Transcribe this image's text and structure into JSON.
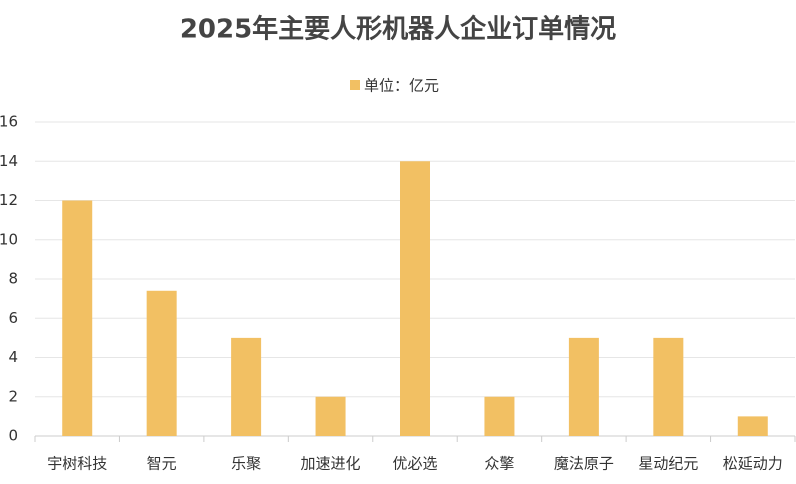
{
  "chart_data": {
    "type": "bar",
    "title": "2025年主要人形机器人企业订单情况",
    "categories": [
      "宇树科技",
      "智元",
      "乐聚",
      "加速进化",
      "优必选",
      "众擎",
      "魔法原子",
      "星动纪元",
      "松延动力"
    ],
    "series": [
      {
        "name": "单位：亿元",
        "color": "#f2c063",
        "values": [
          12,
          7.4,
          5,
          2,
          14,
          2,
          5,
          5,
          1
        ]
      }
    ],
    "ylim": [
      0,
      16
    ],
    "yticks": [
      0,
      2,
      4,
      6,
      8,
      10,
      12,
      14,
      16
    ],
    "grid": true,
    "legend": "top"
  }
}
